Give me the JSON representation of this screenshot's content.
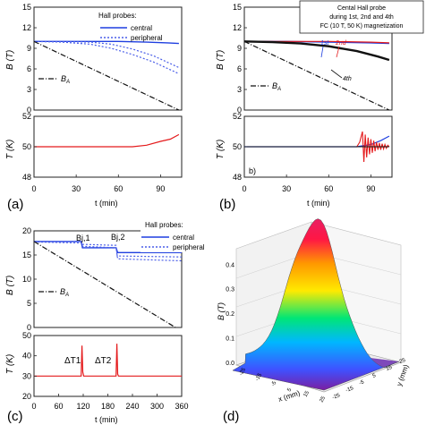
{
  "colors": {
    "central": "#1f3fe0",
    "peripheral": "#4a5ee8",
    "temp": "#e41a1c",
    "ba": "#111111",
    "black": "#111111",
    "frame": "#222222",
    "red": "#e41a1c"
  },
  "panels": {
    "a": {
      "label": "(a)",
      "legend_title": "Hall probes:",
      "legend_central": "central",
      "legend_peripheral": "peripheral",
      "ba_label": "B",
      "ba_sub": "A",
      "b_ylabel": "B (T)",
      "t_ylabel": "T (K)",
      "xlabel": "t (min)"
    },
    "b": {
      "label": "(b)",
      "inner_label": "b)",
      "box_text": [
        "Cental Hall probe",
        "during 1st, 2nd and 4th",
        "FC (10 T, 50 K) magnetization"
      ],
      "label_1st": "1st",
      "label_2nd": "2nd",
      "label_4th": "4th",
      "ba_label": "B",
      "ba_sub": "A",
      "b_ylabel": "B (T)",
      "t_ylabel": "T (K)",
      "xlabel": "t (min)"
    },
    "c": {
      "label": "(c)",
      "legend_title": "Hall probes:",
      "legend_central": "central",
      "legend_peripheral": "peripheral",
      "ba_label": "B",
      "ba_sub": "A",
      "bj1": "Bj,1",
      "bj2": "Bj,2",
      "dt1": "ΔT1",
      "dt2": "ΔT2",
      "b_ylabel": "B (T)",
      "t_ylabel": "T (K)",
      "xlabel": "t (min)"
    },
    "d": {
      "label": "(d)",
      "zlabel": "B (T)",
      "xlabel": "x (mm)",
      "ylabel": "y (mm)"
    }
  },
  "chart_data": [
    {
      "type": "line",
      "panel": "a-top",
      "xlim": [
        0,
        105
      ],
      "ylim": [
        0,
        15
      ],
      "xticks": [
        0,
        30,
        60,
        90
      ],
      "yticks": [
        0,
        3,
        6,
        9,
        12,
        15
      ],
      "series": [
        {
          "name": "central",
          "style": "solid",
          "x": [
            0,
            20,
            40,
            60,
            80,
            95,
            103
          ],
          "y": [
            10,
            10,
            10,
            10,
            9.9,
            9.8,
            9.7
          ]
        },
        {
          "name": "peripheral",
          "style": "dotted",
          "x": [
            0,
            20,
            40,
            55,
            70,
            85,
            103
          ],
          "y": [
            10,
            10,
            9.9,
            9.6,
            8.9,
            7.9,
            6.2
          ]
        },
        {
          "name": "peripheral",
          "style": "dotted",
          "x": [
            0,
            20,
            40,
            55,
            70,
            85,
            103
          ],
          "y": [
            10,
            9.9,
            9.6,
            9.0,
            8.1,
            7.0,
            5.3
          ]
        },
        {
          "name": "BA",
          "style": "dashdot",
          "x": [
            0,
            103
          ],
          "y": [
            10,
            0
          ]
        }
      ]
    },
    {
      "type": "line",
      "panel": "a-bottom",
      "xlim": [
        0,
        105
      ],
      "ylim": [
        48,
        52
      ],
      "xticks": [
        0,
        30,
        60,
        90
      ],
      "yticks": [
        48,
        50,
        52
      ],
      "series": [
        {
          "name": "T",
          "x": [
            0,
            70,
            80,
            90,
            97,
            103
          ],
          "y": [
            50,
            50,
            50.1,
            50.35,
            50.5,
            50.8
          ]
        }
      ]
    },
    {
      "type": "line",
      "panel": "b-top",
      "xlim": [
        0,
        105
      ],
      "ylim": [
        0,
        15
      ],
      "xticks": [
        0,
        30,
        60,
        90
      ],
      "yticks": [
        0,
        3,
        6,
        9,
        12,
        15
      ],
      "series": [
        {
          "name": "1st",
          "x": [
            0,
            30,
            60,
            90,
            103
          ],
          "y": [
            10,
            10,
            9.9,
            9.8,
            9.7
          ]
        },
        {
          "name": "2nd",
          "x": [
            0,
            30,
            60,
            90,
            103
          ],
          "y": [
            10,
            10,
            10,
            9.9,
            9.8
          ]
        },
        {
          "name": "4th",
          "x": [
            0,
            20,
            40,
            60,
            80,
            95,
            103
          ],
          "y": [
            10,
            9.9,
            9.7,
            9.3,
            8.6,
            7.8,
            7.3
          ]
        },
        {
          "name": "BA",
          "style": "dashdot",
          "x": [
            0,
            103
          ],
          "y": [
            10,
            0
          ]
        }
      ]
    },
    {
      "type": "line",
      "panel": "b-bottom",
      "xlim": [
        0,
        105
      ],
      "ylim": [
        48,
        52
      ],
      "xticks": [
        0,
        30,
        60,
        90
      ],
      "yticks": [
        48,
        50,
        52
      ],
      "series": [
        {
          "name": "blue",
          "x": [
            0,
            80,
            90,
            97,
            103
          ],
          "y": [
            50,
            50,
            50.15,
            50.4,
            50.7
          ]
        },
        {
          "name": "red",
          "x": [
            0,
            80,
            82,
            84,
            85,
            86,
            87,
            88,
            89,
            90,
            91,
            92,
            93,
            94,
            95,
            96,
            97,
            98,
            99,
            100,
            101,
            102,
            103
          ],
          "y": [
            50,
            50,
            50.3,
            51.0,
            49.0,
            50.8,
            49.3,
            50.6,
            49.5,
            50.5,
            49.6,
            50.4,
            49.7,
            50.3,
            49.8,
            50.25,
            49.8,
            50.2,
            49.85,
            50.15,
            49.9,
            50.1,
            50.0
          ]
        },
        {
          "name": "black",
          "x": [
            0,
            103
          ],
          "y": [
            50,
            50
          ]
        }
      ]
    },
    {
      "type": "line",
      "panel": "c-top",
      "xlim": [
        0,
        360
      ],
      "ylim": [
        0,
        20
      ],
      "xticks": [
        0,
        60,
        120,
        180,
        240,
        300,
        360
      ],
      "yticks": [
        0,
        5,
        10,
        15,
        20
      ],
      "series": [
        {
          "name": "central",
          "style": "solid",
          "x": [
            0,
            115,
            118,
            200,
            204,
            360
          ],
          "y": [
            17.8,
            17.8,
            16.5,
            16.5,
            15.5,
            15.5
          ]
        },
        {
          "name": "peripheral",
          "style": "dotted",
          "x": [
            0,
            115,
            118,
            200,
            203,
            360
          ],
          "y": [
            17.8,
            17.8,
            17.2,
            17.0,
            14.8,
            14.6
          ]
        },
        {
          "name": "peripheral",
          "style": "dotted",
          "x": [
            0,
            115,
            118,
            200,
            204,
            360
          ],
          "y": [
            17.7,
            17.5,
            16.8,
            16.5,
            14.2,
            13.8
          ]
        },
        {
          "name": "BA",
          "style": "dashdot",
          "x": [
            0,
            345
          ],
          "y": [
            17.8,
            0
          ]
        }
      ]
    },
    {
      "type": "line",
      "panel": "c-bottom",
      "xlim": [
        0,
        360
      ],
      "ylim": [
        20,
        50
      ],
      "xticks": [
        0,
        60,
        120,
        180,
        240,
        300,
        360
      ],
      "yticks": [
        20,
        30,
        40,
        50
      ],
      "series": [
        {
          "name": "T",
          "x": [
            0,
            115,
            117,
            119,
            121,
            200,
            202,
            204,
            206,
            360
          ],
          "y": [
            30,
            30,
            45,
            32,
            30,
            30,
            46,
            31,
            30,
            30
          ]
        }
      ]
    },
    {
      "type": "heatmap",
      "panel": "d",
      "title": "",
      "zlabel": "B (T)",
      "xlabel": "x (mm)",
      "ylabel": "y (mm)",
      "zticks": [
        0.0,
        0.1,
        0.2,
        0.3,
        0.4
      ],
      "xticks": [
        -25,
        -15,
        -5,
        5,
        15,
        25
      ],
      "yticks": [
        -25,
        -15,
        -5,
        5,
        15,
        25
      ],
      "peak": 0.42
    }
  ]
}
